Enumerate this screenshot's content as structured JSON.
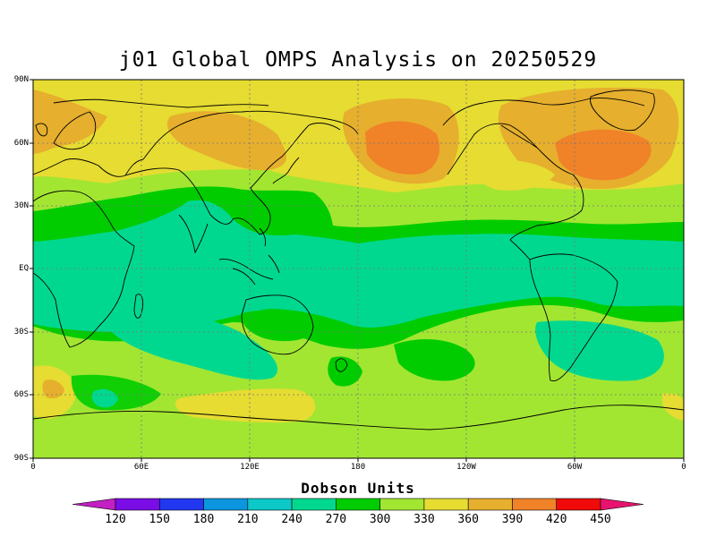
{
  "title": "j01 Global OMPS Analysis on 20250529",
  "lat_labels": [
    "90N",
    "60N",
    "30N",
    "EQ",
    "30S",
    "60S",
    "90S"
  ],
  "lon_labels": [
    "0",
    "60E",
    "120E",
    "180",
    "120W",
    "60W",
    "0"
  ],
  "colorbar": {
    "title": "Dobson Units",
    "ticks": [
      "120",
      "150",
      "180",
      "210",
      "240",
      "270",
      "300",
      "330",
      "360",
      "390",
      "420",
      "450"
    ],
    "colors": [
      "#c31fc3",
      "#7a0de6",
      "#2238f0",
      "#0c96e0",
      "#0cc8c8",
      "#00d890",
      "#00cc00",
      "#a2e632",
      "#e6dc32",
      "#e6af2d",
      "#f08228",
      "#f00a0a",
      "#e6146e"
    ]
  }
}
